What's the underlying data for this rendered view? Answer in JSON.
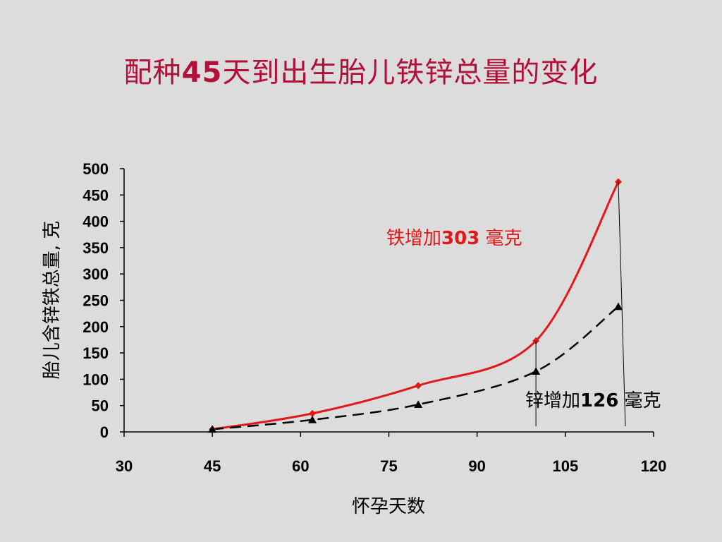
{
  "title": {
    "prefix": "配种",
    "number": "45",
    "suffix": "天到出生胎儿铁锌总量的变化"
  },
  "colors": {
    "iron": "#e01818",
    "zinc": "#000000",
    "title": "#b0103a",
    "background": "#dcdcdc"
  },
  "chart_data": {
    "type": "line",
    "xlabel": "怀孕天数",
    "ylabel": "胎儿含锌铁总量, 克",
    "xlim": [
      30,
      120
    ],
    "ylim": [
      0,
      500
    ],
    "xticks": [
      30,
      45,
      60,
      75,
      90,
      105,
      120
    ],
    "yticks": [
      0,
      50,
      100,
      150,
      200,
      250,
      300,
      350,
      400,
      450,
      500
    ],
    "grid": false,
    "series": [
      {
        "key": "iron",
        "style": "solid",
        "marker": "diamond",
        "x": [
          45,
          62,
          80,
          100,
          114
        ],
        "y": [
          5,
          35,
          88,
          173,
          475
        ]
      },
      {
        "key": "zinc",
        "style": "dashed",
        "marker": "triangle",
        "x": [
          45,
          62,
          80,
          100,
          114
        ],
        "y": [
          5,
          23,
          52,
          115,
          238
        ]
      }
    ],
    "annotations": {
      "iron": {
        "prefix": "铁增加",
        "number": "303",
        "suffix": " 毫克"
      },
      "zinc": {
        "prefix": "锌增加",
        "number": "126",
        "suffix": " 毫克"
      }
    }
  }
}
